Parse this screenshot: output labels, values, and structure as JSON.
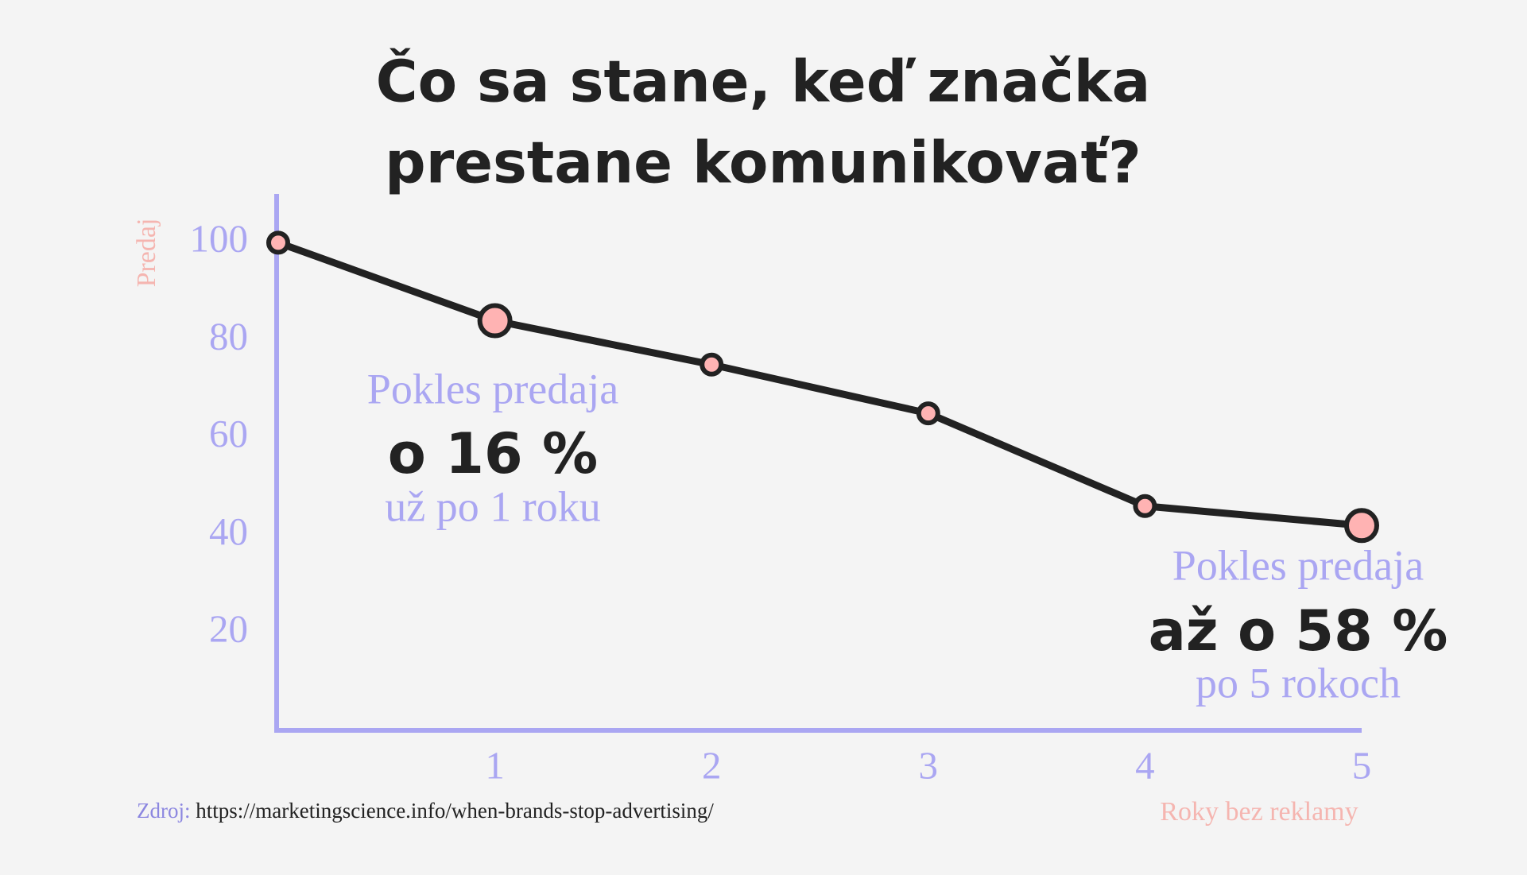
{
  "chart_data": {
    "type": "line",
    "title": [
      "Čo sa stane, keď značka",
      "prestane komunikovať?"
    ],
    "x": [
      0,
      1,
      2,
      3,
      4,
      5
    ],
    "values": [
      100,
      84,
      75,
      65,
      46,
      42
    ],
    "highlight_x": [
      1,
      5
    ],
    "color": "#222222",
    "marker_color": "#ffb3b3",
    "axis_color": "#aaa6f2",
    "xlim": [
      0,
      5
    ],
    "xticks": [
      1,
      2,
      3,
      4,
      5
    ],
    "ylim": [
      0,
      110
    ],
    "yticks": [
      20,
      40,
      60,
      80,
      100
    ],
    "ylabel": "Predaj",
    "xlabel": "Roky bez reklamy",
    "annotations": [
      {
        "x": 1,
        "lines": [
          "Pokles predaja",
          "o 16 %",
          "už po 1 roku"
        ]
      },
      {
        "x": 5,
        "lines": [
          "Pokles predaja",
          "až o 58 %",
          "po 5 rokoch"
        ]
      }
    ],
    "source": {
      "label": "Zdroj:",
      "url": "https://marketingscience.info/when-brands-stop-advertising/"
    }
  }
}
